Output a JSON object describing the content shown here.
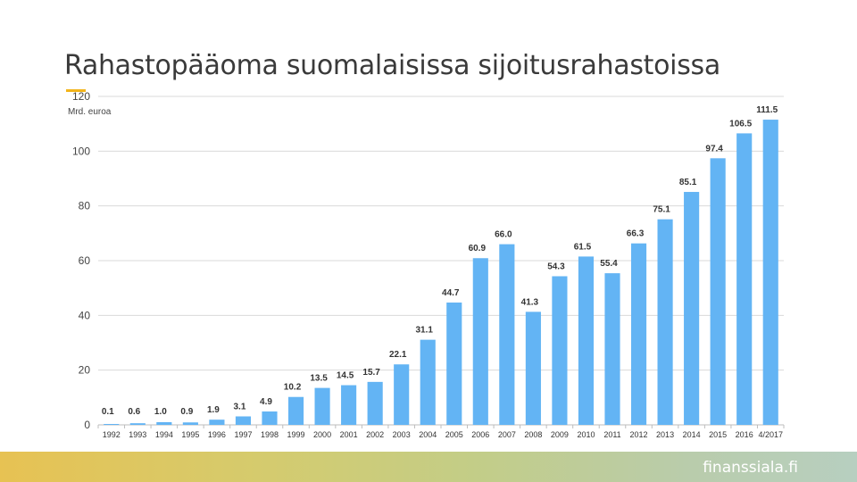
{
  "page": {
    "title": "Rahastopääoma suomalaisissa sijoitusrahastoissa",
    "brand": "finanssiala.fi"
  },
  "colors": {
    "bar": "#63b4f4",
    "grid": "#d9d9d9",
    "accent": "#f2b51c"
  },
  "chart_data": {
    "type": "bar",
    "unit_label": "Mrd. euroa",
    "categories": [
      "1992",
      "1993",
      "1994",
      "1995",
      "1996",
      "1997",
      "1998",
      "1999",
      "2000",
      "2001",
      "2002",
      "2003",
      "2004",
      "2005",
      "2006",
      "2007",
      "2008",
      "2009",
      "2010",
      "2011",
      "2012",
      "2013",
      "2014",
      "2015",
      "2016",
      "4/2017"
    ],
    "values": [
      0.1,
      0.6,
      1.0,
      0.9,
      1.9,
      3.1,
      4.9,
      10.2,
      13.5,
      14.5,
      15.7,
      22.1,
      31.1,
      44.7,
      60.9,
      66.0,
      41.3,
      54.3,
      61.5,
      55.4,
      66.3,
      75.1,
      85.1,
      97.4,
      106.5,
      111.5
    ],
    "labels": [
      "0.1",
      "0.6",
      "1.0",
      "0.9",
      "1.9",
      "3.1",
      "4.9",
      "10.2",
      "13.5",
      "14.5",
      "15.7",
      "22.1",
      "31.1",
      "44.7",
      "60.9",
      "66.0",
      "41.3",
      "54.3",
      "61.5",
      "55.4",
      "66.3",
      "75.1",
      "85.1",
      "97.4",
      "106.5",
      "111.5"
    ],
    "yticks": [
      "0",
      "20",
      "40",
      "60",
      "80",
      "100",
      "120"
    ],
    "ylim": [
      0,
      120
    ],
    "grid": true
  }
}
